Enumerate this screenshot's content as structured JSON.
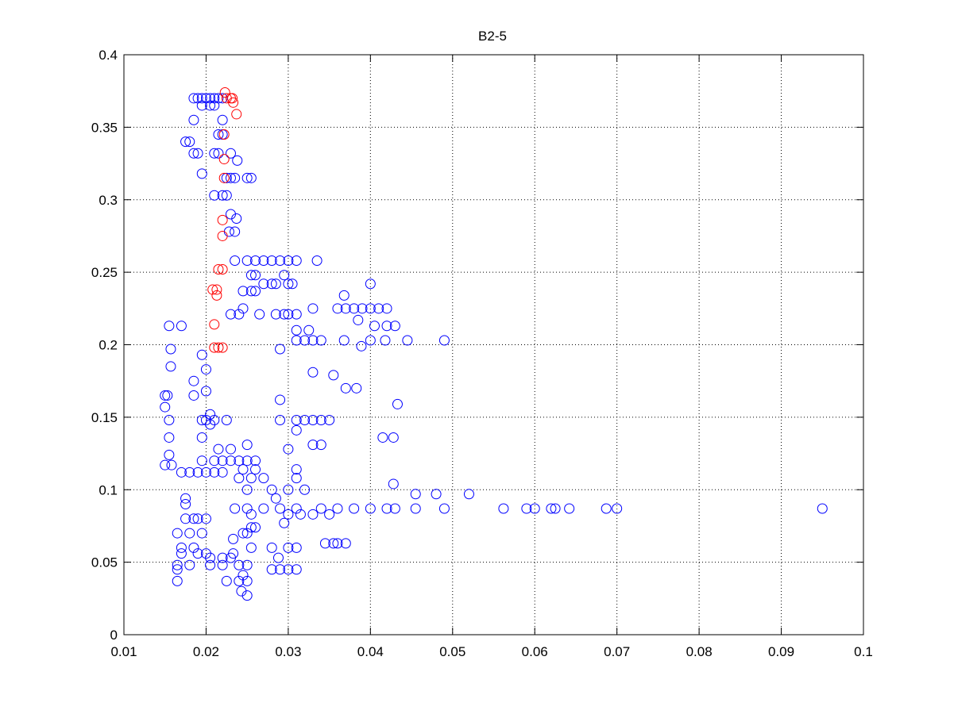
{
  "chart_data": {
    "type": "scatter",
    "title": "B2-5",
    "xlim": [
      0.01,
      0.1
    ],
    "xticks": [
      0.01,
      0.02,
      0.03,
      0.04,
      0.05,
      0.06,
      0.07,
      0.08,
      0.09,
      0.1
    ],
    "ylim": [
      0,
      0.4
    ],
    "yticks": [
      0,
      0.05,
      0.1,
      0.15,
      0.2,
      0.25,
      0.3,
      0.35,
      0.4
    ],
    "grid": true,
    "series": [
      {
        "color": "#0000ff",
        "x": [
          0.0185,
          0.019,
          0.0195,
          0.02,
          0.0205,
          0.021,
          0.0215,
          0.022,
          0.0195,
          0.0205,
          0.021,
          0.0185,
          0.022,
          0.0215,
          0.022,
          0.0175,
          0.018,
          0.0185,
          0.019,
          0.021,
          0.0215,
          0.023,
          0.0238,
          0.0195,
          0.0225,
          0.023,
          0.0235,
          0.025,
          0.0255,
          0.021,
          0.022,
          0.0225,
          0.023,
          0.0237,
          0.0228,
          0.0235,
          0.0235,
          0.025,
          0.026,
          0.027,
          0.028,
          0.029,
          0.03,
          0.031,
          0.0335,
          0.0255,
          0.026,
          0.0295,
          0.027,
          0.028,
          0.0285,
          0.03,
          0.0305,
          0.0245,
          0.0255,
          0.026,
          0.04,
          0.0368,
          0.0245,
          0.033,
          0.036,
          0.037,
          0.038,
          0.039,
          0.04,
          0.041,
          0.042,
          0.023,
          0.024,
          0.0265,
          0.0285,
          0.0295,
          0.03,
          0.031,
          0.0385,
          0.0155,
          0.017,
          0.0405,
          0.042,
          0.043,
          0.031,
          0.0325,
          0.031,
          0.032,
          0.033,
          0.034,
          0.0368,
          0.04,
          0.0418,
          0.0445,
          0.049,
          0.0389,
          0.0157,
          0.029,
          0.0195,
          0.0157,
          0.02,
          0.033,
          0.0355,
          0.0185,
          0.037,
          0.0383,
          0.02,
          0.015,
          0.0153,
          0.0185,
          0.029,
          0.0433,
          0.015,
          0.0205,
          0.0155,
          0.0195,
          0.02,
          0.021,
          0.0225,
          0.029,
          0.031,
          0.032,
          0.033,
          0.034,
          0.035,
          0.0205,
          0.031,
          0.0155,
          0.0195,
          0.0415,
          0.0428,
          0.025,
          0.033,
          0.034,
          0.0215,
          0.023,
          0.03,
          0.0155,
          0.0195,
          0.021,
          0.022,
          0.023,
          0.024,
          0.025,
          0.026,
          0.015,
          0.0158,
          0.0245,
          0.026,
          0.031,
          0.017,
          0.018,
          0.019,
          0.02,
          0.021,
          0.022,
          0.024,
          0.0255,
          0.027,
          0.031,
          0.0428,
          0.025,
          0.028,
          0.03,
          0.032,
          0.0455,
          0.048,
          0.052,
          0.0175,
          0.0285,
          0.0175,
          0.0235,
          0.025,
          0.027,
          0.029,
          0.031,
          0.034,
          0.036,
          0.038,
          0.04,
          0.042,
          0.043,
          0.0455,
          0.049,
          0.0562,
          0.059,
          0.06,
          0.062,
          0.0625,
          0.0642,
          0.0687,
          0.07,
          0.095,
          0.0255,
          0.03,
          0.0315,
          0.033,
          0.035,
          0.0175,
          0.0185,
          0.019,
          0.02,
          0.0295,
          0.0255,
          0.026,
          0.0165,
          0.018,
          0.0195,
          0.0245,
          0.025,
          0.0233,
          0.0345,
          0.0355,
          0.036,
          0.037,
          0.017,
          0.0185,
          0.0255,
          0.028,
          0.03,
          0.031,
          0.017,
          0.019,
          0.02,
          0.0233,
          0.0205,
          0.022,
          0.023,
          0.0288,
          0.0165,
          0.018,
          0.0205,
          0.022,
          0.024,
          0.025,
          0.0165,
          0.028,
          0.029,
          0.03,
          0.031,
          0.0245,
          0.0165,
          0.0225,
          0.024,
          0.025,
          0.0243,
          0.025
        ],
        "y": [
          0.37,
          0.37,
          0.37,
          0.37,
          0.37,
          0.37,
          0.37,
          0.37,
          0.365,
          0.365,
          0.365,
          0.355,
          0.355,
          0.345,
          0.345,
          0.34,
          0.34,
          0.332,
          0.332,
          0.332,
          0.332,
          0.332,
          0.327,
          0.318,
          0.315,
          0.315,
          0.315,
          0.315,
          0.315,
          0.303,
          0.303,
          0.303,
          0.29,
          0.287,
          0.278,
          0.278,
          0.258,
          0.258,
          0.258,
          0.258,
          0.258,
          0.258,
          0.258,
          0.258,
          0.258,
          0.248,
          0.248,
          0.248,
          0.242,
          0.242,
          0.242,
          0.242,
          0.242,
          0.237,
          0.237,
          0.237,
          0.242,
          0.234,
          0.225,
          0.225,
          0.225,
          0.225,
          0.225,
          0.225,
          0.225,
          0.225,
          0.225,
          0.221,
          0.221,
          0.221,
          0.221,
          0.221,
          0.221,
          0.221,
          0.217,
          0.213,
          0.213,
          0.213,
          0.213,
          0.213,
          0.21,
          0.21,
          0.203,
          0.203,
          0.203,
          0.203,
          0.203,
          0.203,
          0.203,
          0.203,
          0.203,
          0.199,
          0.197,
          0.197,
          0.193,
          0.185,
          0.183,
          0.181,
          0.179,
          0.175,
          0.17,
          0.17,
          0.168,
          0.165,
          0.165,
          0.165,
          0.162,
          0.159,
          0.157,
          0.152,
          0.148,
          0.148,
          0.148,
          0.148,
          0.148,
          0.148,
          0.148,
          0.148,
          0.148,
          0.148,
          0.148,
          0.145,
          0.141,
          0.136,
          0.136,
          0.136,
          0.136,
          0.131,
          0.131,
          0.131,
          0.128,
          0.128,
          0.128,
          0.124,
          0.12,
          0.12,
          0.12,
          0.12,
          0.12,
          0.12,
          0.12,
          0.117,
          0.117,
          0.114,
          0.114,
          0.114,
          0.112,
          0.112,
          0.112,
          0.112,
          0.112,
          0.112,
          0.108,
          0.108,
          0.108,
          0.108,
          0.104,
          0.1,
          0.1,
          0.1,
          0.1,
          0.097,
          0.097,
          0.097,
          0.094,
          0.094,
          0.09,
          0.087,
          0.087,
          0.087,
          0.087,
          0.087,
          0.087,
          0.087,
          0.087,
          0.087,
          0.087,
          0.087,
          0.087,
          0.087,
          0.087,
          0.087,
          0.087,
          0.087,
          0.087,
          0.087,
          0.087,
          0.087,
          0.087,
          0.083,
          0.083,
          0.083,
          0.083,
          0.083,
          0.08,
          0.08,
          0.08,
          0.08,
          0.077,
          0.074,
          0.074,
          0.07,
          0.07,
          0.07,
          0.07,
          0.07,
          0.066,
          0.063,
          0.063,
          0.063,
          0.063,
          0.06,
          0.06,
          0.06,
          0.06,
          0.06,
          0.06,
          0.056,
          0.056,
          0.056,
          0.056,
          0.053,
          0.053,
          0.053,
          0.053,
          0.048,
          0.048,
          0.048,
          0.048,
          0.048,
          0.048,
          0.045,
          0.045,
          0.045,
          0.045,
          0.045,
          0.041,
          0.037,
          0.037,
          0.037,
          0.037,
          0.03,
          0.027
        ]
      },
      {
        "color": "#ff0000",
        "x": [
          0.0223,
          0.0225,
          0.023,
          0.0232,
          0.0233,
          0.0237,
          0.0222,
          0.0222,
          0.0222,
          0.022,
          0.022,
          0.0215,
          0.022,
          0.0208,
          0.0213,
          0.0213,
          0.021,
          0.021,
          0.0215,
          0.022
        ],
        "y": [
          0.374,
          0.37,
          0.37,
          0.37,
          0.367,
          0.359,
          0.345,
          0.328,
          0.315,
          0.286,
          0.275,
          0.252,
          0.252,
          0.238,
          0.238,
          0.234,
          0.214,
          0.198,
          0.198,
          0.198
        ]
      }
    ]
  }
}
